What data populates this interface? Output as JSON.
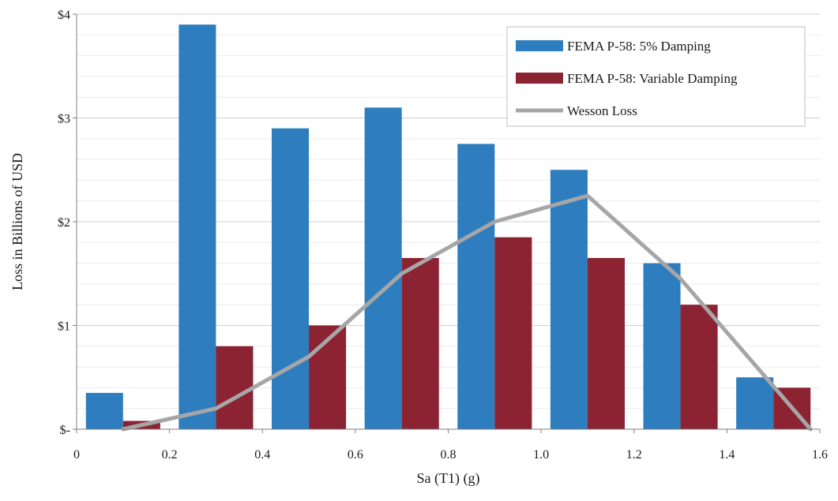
{
  "chart_data": {
    "type": "bar",
    "xlabel": "Sa (T1) (g)",
    "ylabel": "Loss in Billions of USD",
    "xlim": [
      0,
      1.6
    ],
    "ylim": [
      0,
      4
    ],
    "x_ticks": [
      "0",
      "0.2",
      "0.4",
      "0.6",
      "0.8",
      "1.0",
      "1.2",
      "1.4",
      "1.6"
    ],
    "y_ticks": [
      "$-",
      "$1",
      "$2",
      "$3",
      "$4"
    ],
    "grid": true,
    "legend_position": "top-right",
    "bar_centers": [
      0.1,
      0.3,
      0.5,
      0.7,
      0.9,
      1.1,
      1.3,
      1.5
    ],
    "series": [
      {
        "name": "FEMA P-58: 5% Damping",
        "kind": "bar",
        "color": "#2e7ebf",
        "values": [
          0.35,
          3.9,
          2.9,
          3.1,
          2.75,
          2.5,
          1.6,
          0.5
        ]
      },
      {
        "name": "FEMA P-58: Variable Damping",
        "kind": "bar",
        "color": "#8b2332",
        "values": [
          0.08,
          0.8,
          1.0,
          1.65,
          1.85,
          1.65,
          1.2,
          0.4
        ]
      },
      {
        "name": "Wesson Loss",
        "kind": "line",
        "color": "#a6a6a6",
        "x": [
          0.1,
          0.3,
          0.5,
          0.7,
          0.9,
          1.1,
          1.3,
          1.58
        ],
        "values": [
          0.0,
          0.2,
          0.7,
          1.5,
          2.0,
          2.25,
          1.45,
          0.0
        ]
      }
    ]
  }
}
